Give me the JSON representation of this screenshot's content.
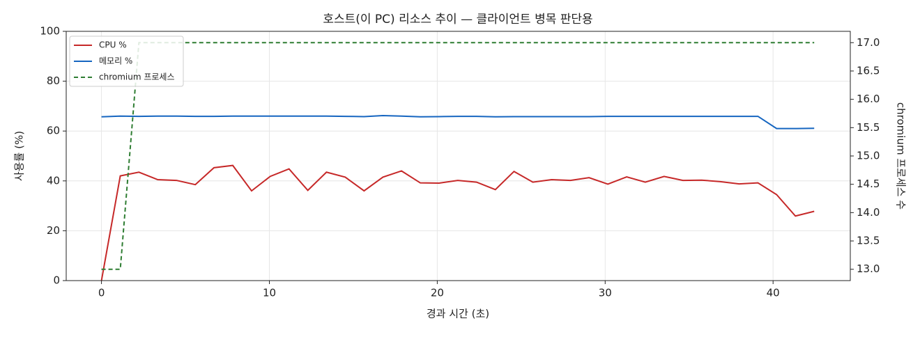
{
  "chart_data": {
    "type": "line",
    "title": "호스트(이 PC) 리소스 추이 — 클라이언트 병목 판단용",
    "xlabel": "경과 시간 (초)",
    "ylabel": "사용률 (%)",
    "y2label": "chromium 프로세스 수",
    "x": [
      0,
      1.12,
      2.23,
      3.35,
      4.47,
      5.59,
      6.7,
      7.82,
      8.94,
      10.05,
      11.17,
      12.29,
      13.4,
      14.52,
      15.64,
      16.76,
      17.87,
      18.99,
      20.11,
      21.22,
      22.34,
      23.46,
      24.57,
      25.69,
      26.81,
      27.93,
      29.04,
      30.16,
      31.28,
      32.39,
      33.51,
      34.63,
      35.74,
      36.86,
      37.98,
      39.1,
      40.21,
      41.33,
      42.45
    ],
    "series": [
      {
        "name": "CPU %",
        "color": "#c62828",
        "dash": false,
        "values": [
          0,
          42,
          43.5,
          40.5,
          40.2,
          38.5,
          45.3,
          46.2,
          36,
          41.8,
          44.8,
          36.2,
          43.5,
          41.5,
          36,
          41.5,
          44,
          39.2,
          39.1,
          40.2,
          39.5,
          36.5,
          43.8,
          39.5,
          40.5,
          40.2,
          41.3,
          38.7,
          41.6,
          39.5,
          41.8,
          40.2,
          40.3,
          39.7,
          38.8,
          39.2,
          34.5,
          25.9,
          27.8
        ]
      },
      {
        "name": "메모리 %",
        "color": "#1565c0",
        "dash": false,
        "values": [
          65.7,
          66.0,
          65.9,
          66.0,
          66.0,
          65.9,
          65.9,
          66.0,
          66.0,
          66.0,
          66.0,
          66.0,
          66.0,
          65.9,
          65.8,
          66.2,
          66.0,
          65.7,
          65.8,
          65.9,
          65.9,
          65.7,
          65.8,
          65.8,
          65.8,
          65.8,
          65.8,
          65.9,
          65.9,
          65.9,
          65.9,
          65.9,
          65.9,
          65.9,
          65.9,
          65.9,
          61.0,
          61.0,
          61.1
        ]
      },
      {
        "name": "chromium 프로세스",
        "color": "#2e7d32",
        "dash": true,
        "axis": "y2",
        "values": [
          13,
          13,
          17,
          17,
          17,
          17,
          17,
          17,
          17,
          17,
          17,
          17,
          17,
          17,
          17,
          17,
          17,
          17,
          17,
          17,
          17,
          17,
          17,
          17,
          17,
          17,
          17,
          17,
          17,
          17,
          17,
          17,
          17,
          17,
          17,
          17,
          17,
          17,
          17
        ]
      }
    ],
    "xlim": [
      -2.1,
      44.6
    ],
    "xticks": [
      0,
      10,
      20,
      30,
      40
    ],
    "ylim": [
      0,
      100
    ],
    "yticks": [
      0,
      20,
      40,
      60,
      80,
      100
    ],
    "y2lim": [
      12.8,
      17.2
    ],
    "y2ticks": [
      {
        "value": 13,
        "label": "13.0"
      },
      {
        "value": 13.5,
        "label": "13.5"
      },
      {
        "value": 14,
        "label": "14.0"
      },
      {
        "value": 14.5,
        "label": "14.5"
      },
      {
        "value": 15,
        "label": "15.0"
      },
      {
        "value": 15.5,
        "label": "15.5"
      },
      {
        "value": 16,
        "label": "16.0"
      },
      {
        "value": 16.5,
        "label": "16.5"
      },
      {
        "value": 17,
        "label": "17.0"
      }
    ],
    "grid": true,
    "legend": "upper-left"
  }
}
